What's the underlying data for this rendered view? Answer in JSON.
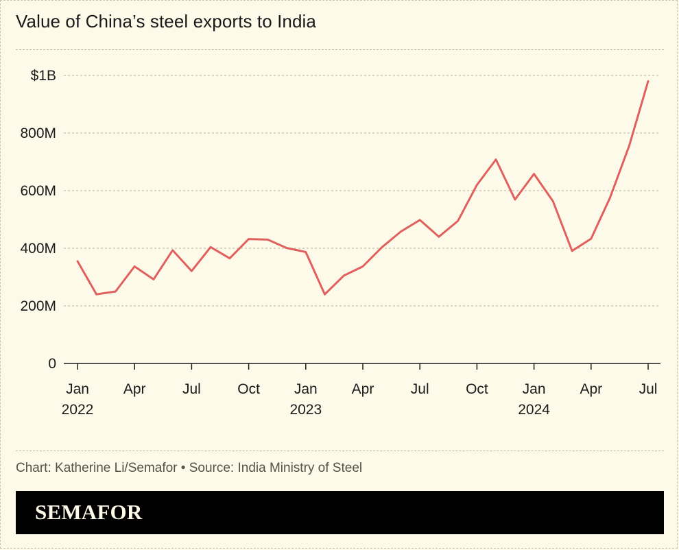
{
  "chart_data": {
    "type": "line",
    "title": "Value of China’s steel exports to India",
    "xlabel": "",
    "ylabel": "",
    "ylim": [
      0,
      1000000000
    ],
    "y_ticks": [
      {
        "value": 0,
        "label": "0"
      },
      {
        "value": 200000000,
        "label": "200M"
      },
      {
        "value": 400000000,
        "label": "400M"
      },
      {
        "value": 600000000,
        "label": "600M"
      },
      {
        "value": 800000000,
        "label": "800M"
      },
      {
        "value": 1000000000,
        "label": "$1B"
      }
    ],
    "x_ticks": [
      {
        "date": "2022-01",
        "label": "Jan",
        "sublabel": "2022"
      },
      {
        "date": "2022-04",
        "label": "Apr",
        "sublabel": ""
      },
      {
        "date": "2022-07",
        "label": "Jul",
        "sublabel": ""
      },
      {
        "date": "2022-10",
        "label": "Oct",
        "sublabel": ""
      },
      {
        "date": "2023-01",
        "label": "Jan",
        "sublabel": "2023"
      },
      {
        "date": "2023-04",
        "label": "Apr",
        "sublabel": ""
      },
      {
        "date": "2023-07",
        "label": "Jul",
        "sublabel": ""
      },
      {
        "date": "2023-10",
        "label": "Oct",
        "sublabel": ""
      },
      {
        "date": "2024-01",
        "label": "Jan",
        "sublabel": "2024"
      },
      {
        "date": "2024-04",
        "label": "Apr",
        "sublabel": ""
      },
      {
        "date": "2024-07",
        "label": "Jul",
        "sublabel": ""
      }
    ],
    "grid": true,
    "series": [
      {
        "color": "#e0605e",
        "x": [
          "2022-01",
          "2022-02",
          "2022-03",
          "2022-04",
          "2022-05",
          "2022-06",
          "2022-07",
          "2022-08",
          "2022-09",
          "2022-10",
          "2022-11",
          "2022-12",
          "2023-01",
          "2023-02",
          "2023-03",
          "2023-04",
          "2023-05",
          "2023-06",
          "2023-07",
          "2023-08",
          "2023-09",
          "2023-10",
          "2023-11",
          "2023-12",
          "2024-01",
          "2024-02",
          "2024-03",
          "2024-04",
          "2024-05",
          "2024-06",
          "2024-07"
        ],
        "values": [
          355000000,
          240000000,
          250000000,
          337000000,
          292000000,
          393000000,
          321000000,
          404000000,
          365000000,
          432000000,
          430000000,
          401000000,
          387000000,
          240000000,
          305000000,
          337000000,
          403000000,
          458000000,
          498000000,
          440000000,
          495000000,
          620000000,
          708000000,
          569000000,
          658000000,
          563000000,
          391000000,
          433000000,
          576000000,
          755000000,
          980000000
        ]
      }
    ]
  },
  "credit": "Chart: Katherine Li/Semafor • Source: India Ministry of Steel",
  "footer": {
    "logo": "SEMAFOR"
  }
}
